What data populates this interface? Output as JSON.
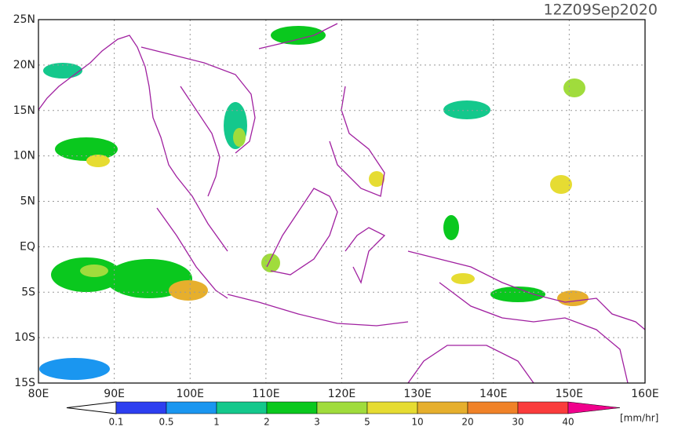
{
  "title": "12Z09Sep2020",
  "map": {
    "lon_range": [
      80,
      160
    ],
    "lat_range": [
      -15,
      25
    ],
    "lon_ticks": [
      {
        "value": 80,
        "label": "80E"
      },
      {
        "value": 90,
        "label": "90E"
      },
      {
        "value": 100,
        "label": "100E"
      },
      {
        "value": 110,
        "label": "110E"
      },
      {
        "value": 120,
        "label": "120E"
      },
      {
        "value": 130,
        "label": "130E"
      },
      {
        "value": 140,
        "label": "140E"
      },
      {
        "value": 150,
        "label": "150E"
      },
      {
        "value": 160,
        "label": "160E"
      }
    ],
    "lat_ticks": [
      {
        "value": 25,
        "label": "25N"
      },
      {
        "value": 20,
        "label": "20N"
      },
      {
        "value": 15,
        "label": "15N"
      },
      {
        "value": 10,
        "label": "10N"
      },
      {
        "value": 5,
        "label": "5N"
      },
      {
        "value": 0,
        "label": "EQ"
      },
      {
        "value": -5,
        "label": "5S"
      },
      {
        "value": -10,
        "label": "10S"
      },
      {
        "value": -15,
        "label": "15S"
      }
    ]
  },
  "colorbar": {
    "levels": [
      0.1,
      0.5,
      1,
      2,
      3,
      5,
      10,
      20,
      30,
      40
    ],
    "colors": [
      "#ffffff",
      "#2d3ff0",
      "#1a96f0",
      "#14c88c",
      "#0ac81e",
      "#a0dc3c",
      "#e6dc32",
      "#e6af2d",
      "#f08228",
      "#fa3c3c",
      "#f0008c"
    ],
    "unit": "[mm/hr]"
  }
}
